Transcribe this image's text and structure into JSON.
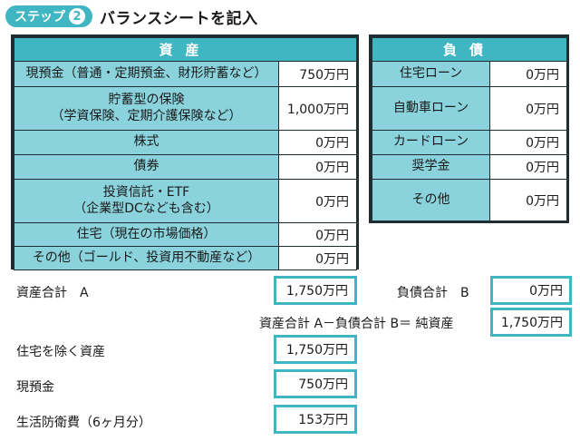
{
  "header": {
    "step_label": "ステップ",
    "step_number": "2",
    "title": "バランスシートを記入"
  },
  "assets": {
    "heading": "資産",
    "rows": [
      {
        "label": "現預金（普通・定期預金、財形貯蓄など）",
        "value": "750万円"
      },
      {
        "label": "貯蓄型の保険\n（学資保険、定期介護保険など）",
        "value": "1,000万円"
      },
      {
        "label": "株式",
        "value": "0万円"
      },
      {
        "label": "債券",
        "value": "0万円"
      },
      {
        "label": "投資信託・ETF\n（企業型DCなども含む）",
        "value": "0万円"
      },
      {
        "label": "住宅（現在の市場価格）",
        "value": "0万円"
      },
      {
        "label": "その他（ゴールド、投資用不動産など）",
        "value": "0万円"
      }
    ]
  },
  "liabilities": {
    "heading": "負債",
    "rows": [
      {
        "label": "住宅ローン",
        "value": "0万円"
      },
      {
        "label": "自動車ローン",
        "value": "0万円"
      },
      {
        "label": "カードローン",
        "value": "0万円"
      },
      {
        "label": "奨学金",
        "value": "0万円"
      },
      {
        "label": "その他",
        "value": "0万円"
      }
    ]
  },
  "summary": {
    "total_assets_label": "資産合計　A",
    "total_assets_value": "1,750万円",
    "total_liabilities_label": "負債合計　B",
    "total_liabilities_value": "0万円",
    "net_worth_label": "資産合計 A－負債合計 B＝ 純資産",
    "net_worth_value": "1,750万円",
    "excl_home_label": "住宅を除く資産",
    "excl_home_value": "1,750万円",
    "cash_label": "現預金",
    "cash_value": "750万円",
    "emergency_label": "生活防衛費（6ヶ月分）",
    "emergency_value": "153万円"
  }
}
